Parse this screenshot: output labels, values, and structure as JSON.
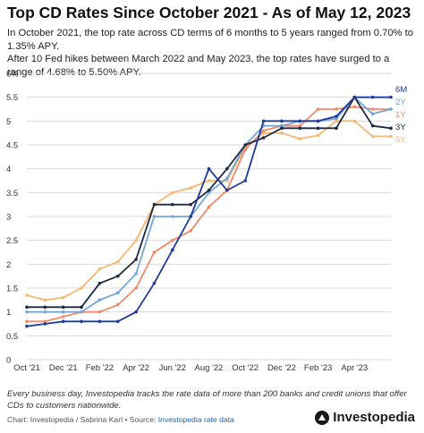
{
  "header": {
    "title": "Top CD Rates Since October 2021 - As of May 12, 2023",
    "subtitle_line1": "In October 2021, the top rate across CD terms of 6 months to 5 years ranged from 0.70% to 1.35% APY.",
    "subtitle_line2": "After 10 Fed hikes between March 2022 and May 2023, the top rates have surged to a range of 4.68% to 5.50% APY."
  },
  "footer": {
    "note": "Every business day, Investopedia tracks the rate data of more than 200 banks and credit unions that offer CDs to customers nationwide.",
    "credit_prefix": "Chart: Investopedia / Sabrina Karl • Source:",
    "credit_link": "Investopedia rate data",
    "logo": "Investopedia"
  },
  "chart_data": {
    "type": "line",
    "x_tick_labels": [
      "Oct '21",
      "Dec '21",
      "Feb '22",
      "Apr '22",
      "Jun '22",
      "Aug '22",
      "Oct '22",
      "Dec '22",
      "Feb '23",
      "Apr '23"
    ],
    "y_tick_labels": [
      "0",
      "0.5",
      "1",
      "1.5",
      "2",
      "2.5",
      "3",
      "3.5",
      "4",
      "4.5",
      "5",
      "5.5",
      "6%"
    ],
    "ylim": [
      0,
      6
    ],
    "grid": true,
    "legend": "end-of-line labels",
    "x_index": [
      0,
      1,
      2,
      3,
      4,
      5,
      6,
      7,
      8,
      9,
      10,
      11,
      12,
      13,
      14,
      15,
      16,
      17,
      18,
      19,
      20
    ],
    "series": [
      {
        "name": "6M",
        "color": "#1f3a9c",
        "values": [
          0.7,
          0.75,
          0.8,
          0.8,
          0.8,
          0.8,
          1.0,
          1.6,
          2.3,
          3.0,
          4.0,
          3.55,
          3.75,
          5.0,
          5.0,
          5.0,
          5.0,
          5.1,
          5.5,
          5.5,
          5.5
        ]
      },
      {
        "name": "2Y",
        "color": "#74a6d6",
        "values": [
          1.0,
          1.0,
          1.0,
          1.0,
          1.25,
          1.4,
          1.8,
          3.0,
          3.0,
          3.0,
          3.5,
          3.8,
          4.5,
          4.9,
          4.9,
          5.0,
          5.0,
          5.05,
          5.5,
          5.15,
          5.25
        ]
      },
      {
        "name": "1Y",
        "color": "#f28a6a",
        "values": [
          0.8,
          0.8,
          0.9,
          1.0,
          1.0,
          1.15,
          1.5,
          2.25,
          2.5,
          2.7,
          3.2,
          3.55,
          4.4,
          4.8,
          4.9,
          4.9,
          5.25,
          5.25,
          5.3,
          5.25,
          5.25
        ]
      },
      {
        "name": "3Y",
        "color": "#1c2a44",
        "values": [
          1.1,
          1.1,
          1.1,
          1.1,
          1.6,
          1.75,
          2.1,
          3.25,
          3.25,
          3.25,
          3.55,
          4.0,
          4.5,
          4.65,
          4.85,
          4.85,
          4.85,
          4.85,
          5.5,
          4.9,
          4.85
        ]
      },
      {
        "name": "5Y",
        "color": "#f5b870",
        "values": [
          1.35,
          1.25,
          1.3,
          1.5,
          1.9,
          2.05,
          2.5,
          3.25,
          3.5,
          3.6,
          3.75,
          3.75,
          4.45,
          4.75,
          4.75,
          4.63,
          4.7,
          5.0,
          5.0,
          4.68,
          4.68
        ]
      }
    ]
  }
}
